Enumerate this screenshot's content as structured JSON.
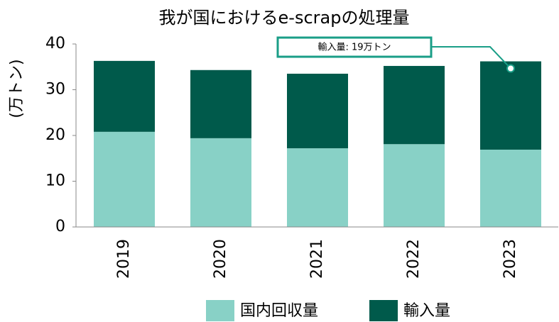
{
  "chart_data": {
    "type": "stacked_bar",
    "title": "我が国におけるe-scrapの処理量",
    "y_label": "(万トン)",
    "categories": [
      "2019",
      "2020",
      "2021",
      "2022",
      "2023"
    ],
    "series": [
      {
        "name": "国内回収量",
        "color": "#88d1c6",
        "values": [
          20.8,
          19.4,
          17.2,
          18.1,
          16.9
        ]
      },
      {
        "name": "輸入量",
        "color": "#005a4b",
        "values": [
          15.5,
          14.9,
          16.3,
          17.1,
          19.3
        ]
      }
    ],
    "ylim": [
      0,
      40
    ],
    "yticks": [
      0,
      10,
      20,
      30,
      40
    ],
    "annotation": "輸入量: 19万トン"
  }
}
